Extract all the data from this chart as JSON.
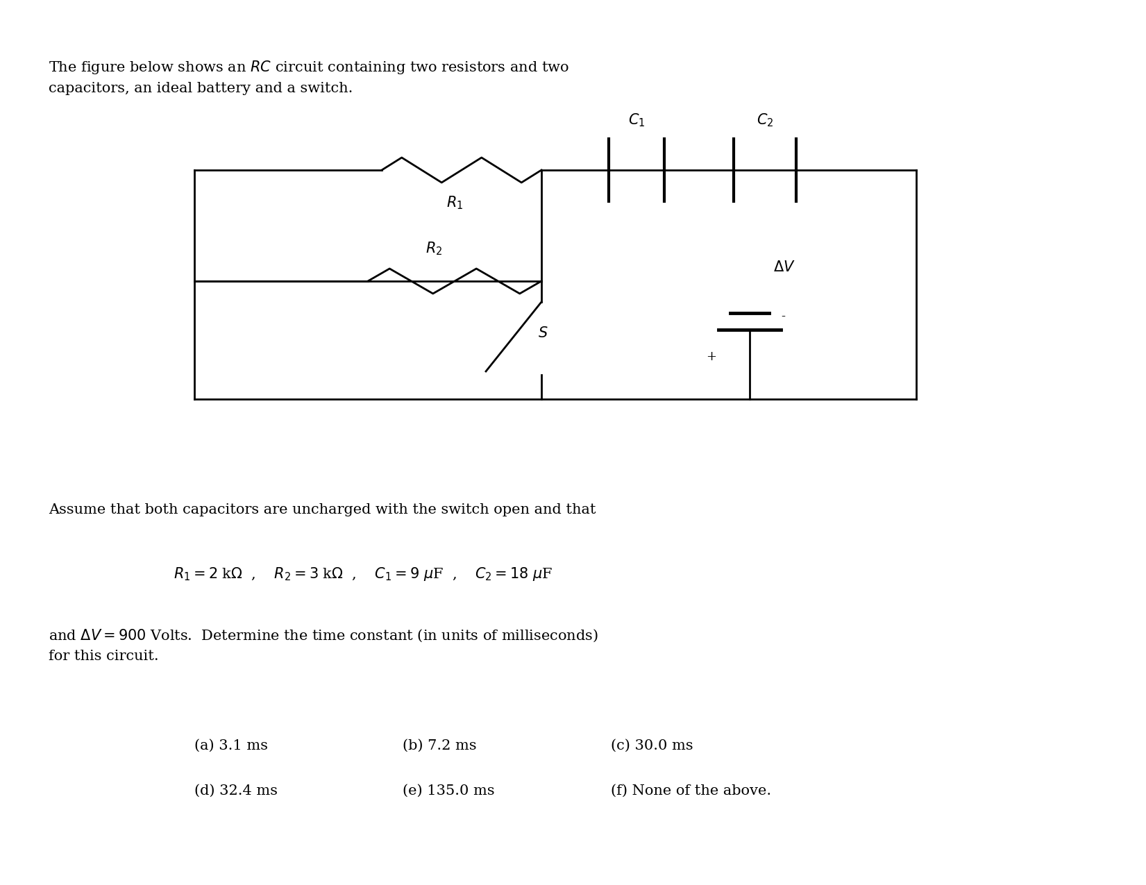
{
  "background_color": "#ffffff",
  "title_text": "The figure below shows an $RC$ circuit containing two resistors and two\ncapacitors, an ideal battery and a switch.",
  "assume_text": "Assume that both capacitors are uncharged with the switch open and that",
  "values_text": "$R_1 = 2$ k$\\Omega$  ,    $R_2 = 3$ k$\\Omega$  ,    $C_1 = 9$ $\\mu$F  ,    $C_2 = 18$ $\\mu$F",
  "and_text": "and $\\Delta V = 900$ Volts.  Determine the time constant (in units of milliseconds)\nfor this circuit.",
  "answers": [
    [
      "(a) 3.1 ms",
      "(b) 7.2 ms",
      "(c) 30.0 ms"
    ],
    [
      "(d) 32.4 ms",
      "(e) 135.0 ms",
      "(f) None of the above."
    ]
  ],
  "fig_width": 16.51,
  "fig_height": 12.75,
  "font_size": 15
}
